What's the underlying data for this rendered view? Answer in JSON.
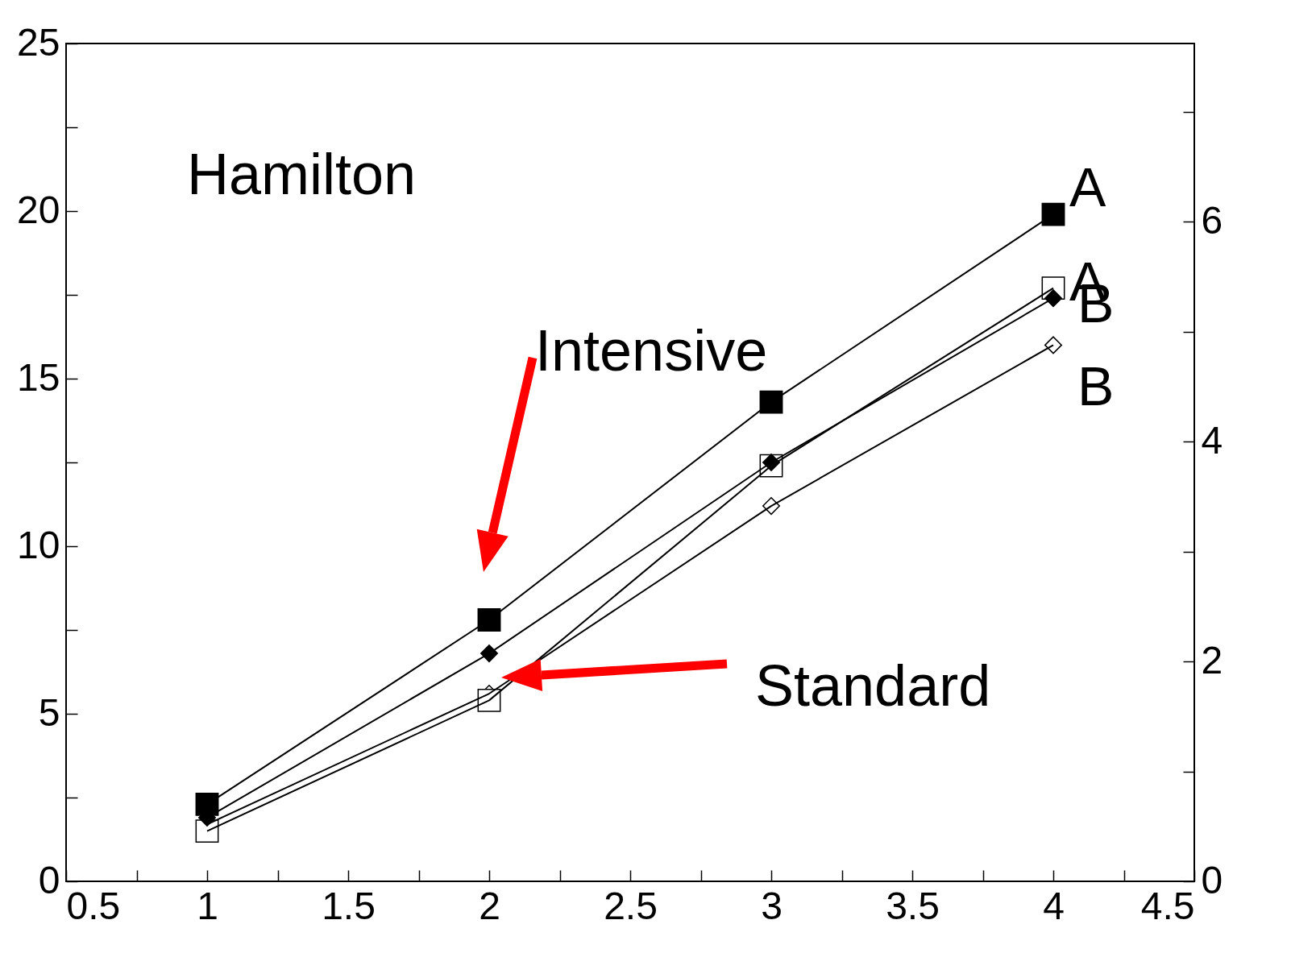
{
  "chart_data": {
    "type": "line",
    "x": [
      1,
      2,
      3,
      4
    ],
    "series": [
      {
        "name": "A",
        "color": "#000000",
        "marker": "square",
        "values": [
          2.3,
          7.8,
          14.3,
          19.9
        ]
      },
      {
        "name": "B",
        "color": "#000000",
        "marker": "diamond",
        "values": [
          1.9,
          6.8,
          12.5,
          17.4
        ]
      },
      {
        "name": "A",
        "color": "#ffffff",
        "marker": "square",
        "values": [
          1.5,
          5.4,
          12.4,
          17.7
        ]
      },
      {
        "name": "B",
        "color": "#ffffff",
        "marker": "diamond",
        "values": [
          1.7,
          5.6,
          11.2,
          16.0
        ]
      }
    ],
    "annotations": [
      "Hamilton",
      "Intensive",
      "Standard"
    ],
    "xlim": [
      0.5,
      4.5
    ],
    "xticks": [
      0.5,
      {
        "value": 0.75,
        "label": null
      },
      1,
      {
        "value": 1.25,
        "label": null
      },
      1.5,
      {
        "value": 1.75,
        "label": null
      },
      2,
      {
        "value": 2.25,
        "label": null
      },
      2.5,
      {
        "value": 2.75,
        "label": null
      },
      3,
      {
        "value": 3.25,
        "label": null
      },
      3.5,
      {
        "value": 3.75,
        "label": null
      },
      4,
      {
        "value": 4.25,
        "label": null
      },
      4.5
    ],
    "ylim": [
      0,
      25
    ],
    "yticks": [
      0,
      {
        "value": 2.5,
        "label": null
      },
      5,
      {
        "value": 7.5,
        "label": null
      },
      10,
      {
        "value": 12.5,
        "label": null
      },
      15,
      {
        "value": 17.5,
        "label": null
      },
      20,
      {
        "value": 22.5,
        "label": null
      },
      25
    ],
    "y2lim": [
      0,
      7.62
    ],
    "y2ticks": [
      0,
      {
        "value": 1,
        "label": null
      },
      2,
      {
        "value": 3,
        "label": null
      },
      4,
      {
        "value": 5,
        "label": null
      },
      6,
      {
        "value": 7,
        "label": null
      }
    ],
    "grid": false,
    "line_style": "solid"
  }
}
